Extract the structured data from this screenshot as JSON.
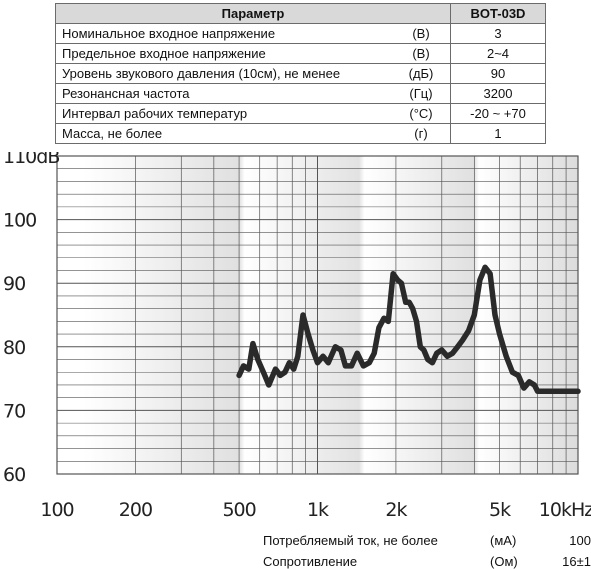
{
  "spec_table": {
    "header": {
      "param": "Параметр",
      "model": "BOT-03D"
    },
    "rows": [
      {
        "name": "Номинальное входное напряжение",
        "unit": "(В)",
        "value": "3"
      },
      {
        "name": "Предельное входное напряжение",
        "unit": "(В)",
        "value": "2~4"
      },
      {
        "name": "Уровень звукового давления (10см), не менее",
        "unit": "(дБ)",
        "value": "90"
      },
      {
        "name": "Резонансная частота",
        "unit": "(Гц)",
        "value": "3200"
      },
      {
        "name": "Интервал рабочих температур",
        "unit": "(°C)",
        "value": "-20 ~ +70"
      },
      {
        "name": "Масса, не более",
        "unit": "(г)",
        "value": "1"
      }
    ]
  },
  "footer_params": [
    {
      "name": "Потребляемый ток, не более",
      "unit": "(мА)",
      "value": "100"
    },
    {
      "name": "Сопротивление",
      "unit": "(Ом)",
      "value": "16±1"
    }
  ],
  "colors": {
    "curve": "#2a2a2a",
    "grid": "#555555",
    "background_light": "#ffffff",
    "background_dark": "#d6d6d6"
  },
  "chart_data": {
    "type": "line",
    "x_scale": "log",
    "xlim": [
      100,
      10000
    ],
    "ylim": [
      60,
      110
    ],
    "grid": true,
    "x_tick_labels": [
      {
        "x": 100,
        "label": "100"
      },
      {
        "x": 200,
        "label": "200"
      },
      {
        "x": 500,
        "label": "500"
      },
      {
        "x": 1000,
        "label": "1k"
      },
      {
        "x": 2000,
        "label": "2k"
      },
      {
        "x": 5000,
        "label": "5k"
      },
      {
        "x": 10000,
        "label": "10kHz"
      }
    ],
    "y_tick_labels": [
      {
        "y": 110,
        "label": "110dB"
      },
      {
        "y": 100,
        "label": "100"
      },
      {
        "y": 90,
        "label": "90"
      },
      {
        "y": 80,
        "label": "80"
      },
      {
        "y": 70,
        "label": "70"
      },
      {
        "y": 60,
        "label": "60"
      }
    ],
    "series": [
      {
        "x": [
          500,
          520,
          545,
          565,
          590,
          620,
          650,
          690,
          720,
          750,
          780,
          810,
          840,
          880,
          920,
          960,
          1000,
          1050,
          1100,
          1170,
          1230,
          1280,
          1350,
          1420,
          1500,
          1580,
          1650,
          1720,
          1800,
          1870,
          1950,
          2030,
          2100,
          2180,
          2250,
          2320,
          2400,
          2480,
          2560,
          2650,
          2760,
          2870,
          3000,
          3150,
          3300,
          3450,
          3600,
          3800,
          4000,
          4200,
          4400,
          4600,
          4800,
          5000,
          5300,
          5600,
          5900,
          6200,
          6500,
          6800,
          7000,
          7300,
          7600,
          8000,
          8400,
          8800,
          9200,
          9600,
          10000
        ],
        "y": [
          75.5,
          77,
          76.5,
          80.5,
          78,
          76,
          74,
          76.5,
          75.5,
          76,
          77.5,
          76.5,
          78.5,
          85,
          82,
          79.5,
          77.5,
          78.5,
          77.5,
          80,
          79.5,
          77,
          77,
          79,
          77,
          77.5,
          79,
          83,
          84.5,
          84,
          91.5,
          90.5,
          90,
          87,
          87,
          86,
          84,
          80,
          79.5,
          78,
          77.5,
          79,
          79.5,
          78.5,
          79,
          80,
          81,
          82.5,
          85,
          90.5,
          92.5,
          91.5,
          85,
          82,
          78.5,
          76,
          75.5,
          73.5,
          74.5,
          74,
          73,
          73,
          73,
          73,
          73,
          73,
          73,
          73,
          73
        ]
      }
    ]
  }
}
